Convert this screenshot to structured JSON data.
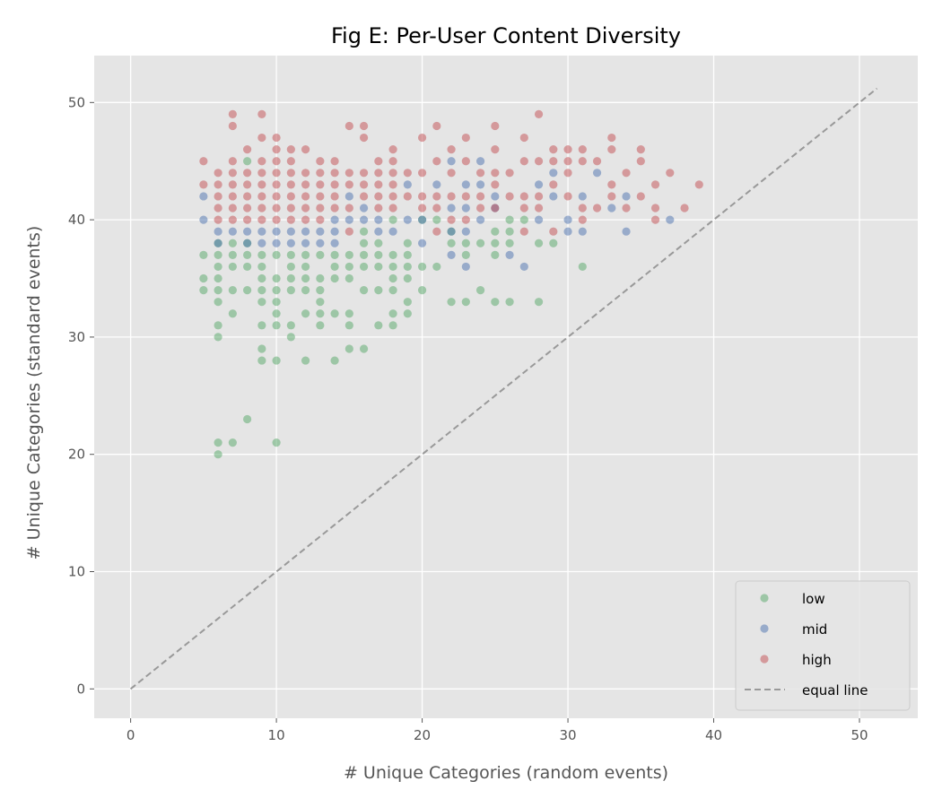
{
  "chart_data": {
    "type": "scatter",
    "title": "Fig E: Per-User Content Diversity",
    "xlabel": "# Unique Categories (random events)",
    "ylabel": "# Unique Categories (standard events)",
    "xlim": [
      -2.5,
      54
    ],
    "ylim": [
      -2.5,
      54
    ],
    "xticks": [
      0,
      10,
      20,
      30,
      40,
      50
    ],
    "yticks": [
      0,
      10,
      20,
      30,
      40,
      50
    ],
    "grid": true,
    "style": "ggplot",
    "legend_position": "lower-right",
    "series": [
      {
        "name": "low",
        "color": "#55a868",
        "points": [
          [
            5,
            37
          ],
          [
            5,
            35
          ],
          [
            5,
            34
          ],
          [
            6,
            38
          ],
          [
            6,
            37
          ],
          [
            6,
            36
          ],
          [
            6,
            35
          ],
          [
            6,
            34
          ],
          [
            6,
            33
          ],
          [
            6,
            31
          ],
          [
            6,
            30
          ],
          [
            6,
            21
          ],
          [
            6,
            20
          ],
          [
            7,
            38
          ],
          [
            7,
            37
          ],
          [
            7,
            36
          ],
          [
            7,
            34
          ],
          [
            7,
            32
          ],
          [
            7,
            21
          ],
          [
            8,
            38
          ],
          [
            8,
            37
          ],
          [
            8,
            36
          ],
          [
            8,
            34
          ],
          [
            8,
            45
          ],
          [
            8,
            23
          ],
          [
            9,
            37
          ],
          [
            9,
            36
          ],
          [
            9,
            35
          ],
          [
            9,
            34
          ],
          [
            9,
            33
          ],
          [
            9,
            31
          ],
          [
            9,
            29
          ],
          [
            9,
            28
          ],
          [
            10,
            37
          ],
          [
            10,
            35
          ],
          [
            10,
            34
          ],
          [
            10,
            33
          ],
          [
            10,
            32
          ],
          [
            10,
            31
          ],
          [
            10,
            28
          ],
          [
            10,
            21
          ],
          [
            11,
            37
          ],
          [
            11,
            36
          ],
          [
            11,
            35
          ],
          [
            11,
            34
          ],
          [
            11,
            31
          ],
          [
            11,
            30
          ],
          [
            12,
            37
          ],
          [
            12,
            36
          ],
          [
            12,
            35
          ],
          [
            12,
            34
          ],
          [
            12,
            32
          ],
          [
            12,
            28
          ],
          [
            13,
            37
          ],
          [
            13,
            35
          ],
          [
            13,
            34
          ],
          [
            13,
            33
          ],
          [
            13,
            32
          ],
          [
            13,
            31
          ],
          [
            14,
            37
          ],
          [
            14,
            36
          ],
          [
            14,
            35
          ],
          [
            14,
            32
          ],
          [
            14,
            28
          ],
          [
            15,
            37
          ],
          [
            15,
            36
          ],
          [
            15,
            35
          ],
          [
            15,
            32
          ],
          [
            15,
            31
          ],
          [
            15,
            29
          ],
          [
            16,
            38
          ],
          [
            16,
            37
          ],
          [
            16,
            36
          ],
          [
            16,
            34
          ],
          [
            16,
            29
          ],
          [
            17,
            38
          ],
          [
            17,
            37
          ],
          [
            17,
            36
          ],
          [
            17,
            34
          ],
          [
            17,
            31
          ],
          [
            18,
            37
          ],
          [
            18,
            36
          ],
          [
            18,
            35
          ],
          [
            18,
            34
          ],
          [
            18,
            32
          ],
          [
            18,
            31
          ],
          [
            19,
            38
          ],
          [
            19,
            37
          ],
          [
            19,
            36
          ],
          [
            19,
            35
          ],
          [
            19,
            33
          ],
          [
            19,
            32
          ],
          [
            20,
            36
          ],
          [
            20,
            34
          ],
          [
            21,
            36
          ],
          [
            22,
            38
          ],
          [
            22,
            33
          ],
          [
            23,
            38
          ],
          [
            23,
            37
          ],
          [
            23,
            33
          ],
          [
            24,
            38
          ],
          [
            24,
            34
          ],
          [
            25,
            38
          ],
          [
            25,
            37
          ],
          [
            25,
            33
          ],
          [
            26,
            39
          ],
          [
            26,
            38
          ],
          [
            26,
            33
          ],
          [
            27,
            40
          ],
          [
            28,
            38
          ],
          [
            28,
            33
          ],
          [
            29,
            38
          ],
          [
            31,
            36
          ],
          [
            16,
            39
          ],
          [
            18,
            40
          ],
          [
            20,
            40
          ],
          [
            21,
            40
          ],
          [
            22,
            39
          ],
          [
            25,
            39
          ],
          [
            26,
            40
          ]
        ]
      },
      {
        "name": "mid",
        "color": "#4c72b0",
        "points": [
          [
            5,
            42
          ],
          [
            5,
            40
          ],
          [
            6,
            39
          ],
          [
            6,
            38
          ],
          [
            7,
            39
          ],
          [
            8,
            38
          ],
          [
            8,
            39
          ],
          [
            9,
            38
          ],
          [
            9,
            39
          ],
          [
            10,
            38
          ],
          [
            10,
            39
          ],
          [
            11,
            38
          ],
          [
            11,
            39
          ],
          [
            12,
            38
          ],
          [
            12,
            39
          ],
          [
            13,
            38
          ],
          [
            13,
            39
          ],
          [
            14,
            38
          ],
          [
            14,
            39
          ],
          [
            14,
            40
          ],
          [
            15,
            42
          ],
          [
            15,
            40
          ],
          [
            16,
            40
          ],
          [
            16,
            41
          ],
          [
            17,
            40
          ],
          [
            17,
            39
          ],
          [
            18,
            39
          ],
          [
            19,
            40
          ],
          [
            19,
            43
          ],
          [
            20,
            38
          ],
          [
            20,
            40
          ],
          [
            21,
            43
          ],
          [
            22,
            45
          ],
          [
            22,
            41
          ],
          [
            22,
            39
          ],
          [
            22,
            37
          ],
          [
            23,
            43
          ],
          [
            23,
            41
          ],
          [
            23,
            39
          ],
          [
            23,
            36
          ],
          [
            24,
            45
          ],
          [
            24,
            43
          ],
          [
            24,
            40
          ],
          [
            25,
            42
          ],
          [
            25,
            41
          ],
          [
            26,
            37
          ],
          [
            27,
            36
          ],
          [
            28,
            43
          ],
          [
            28,
            40
          ],
          [
            29,
            44
          ],
          [
            29,
            42
          ],
          [
            30,
            40
          ],
          [
            30,
            39
          ],
          [
            31,
            42
          ],
          [
            31,
            39
          ],
          [
            32,
            44
          ],
          [
            33,
            41
          ],
          [
            34,
            42
          ],
          [
            34,
            39
          ],
          [
            37,
            40
          ]
        ]
      },
      {
        "name": "high",
        "color": "#c44e52",
        "points": [
          [
            5,
            45
          ],
          [
            5,
            43
          ],
          [
            6,
            44
          ],
          [
            6,
            43
          ],
          [
            6,
            42
          ],
          [
            6,
            41
          ],
          [
            6,
            40
          ],
          [
            7,
            49
          ],
          [
            7,
            48
          ],
          [
            7,
            45
          ],
          [
            7,
            44
          ],
          [
            7,
            43
          ],
          [
            7,
            42
          ],
          [
            7,
            41
          ],
          [
            7,
            40
          ],
          [
            8,
            46
          ],
          [
            8,
            44
          ],
          [
            8,
            43
          ],
          [
            8,
            42
          ],
          [
            8,
            41
          ],
          [
            8,
            40
          ],
          [
            9,
            49
          ],
          [
            9,
            47
          ],
          [
            9,
            45
          ],
          [
            9,
            44
          ],
          [
            9,
            43
          ],
          [
            9,
            42
          ],
          [
            9,
            41
          ],
          [
            9,
            40
          ],
          [
            10,
            47
          ],
          [
            10,
            46
          ],
          [
            10,
            45
          ],
          [
            10,
            44
          ],
          [
            10,
            43
          ],
          [
            10,
            42
          ],
          [
            10,
            41
          ],
          [
            10,
            40
          ],
          [
            11,
            46
          ],
          [
            11,
            45
          ],
          [
            11,
            44
          ],
          [
            11,
            43
          ],
          [
            11,
            42
          ],
          [
            11,
            41
          ],
          [
            11,
            40
          ],
          [
            12,
            46
          ],
          [
            12,
            44
          ],
          [
            12,
            43
          ],
          [
            12,
            42
          ],
          [
            12,
            41
          ],
          [
            12,
            40
          ],
          [
            13,
            45
          ],
          [
            13,
            44
          ],
          [
            13,
            43
          ],
          [
            13,
            42
          ],
          [
            13,
            41
          ],
          [
            13,
            40
          ],
          [
            14,
            45
          ],
          [
            14,
            44
          ],
          [
            14,
            43
          ],
          [
            14,
            42
          ],
          [
            14,
            41
          ],
          [
            15,
            48
          ],
          [
            15,
            44
          ],
          [
            15,
            43
          ],
          [
            15,
            41
          ],
          [
            15,
            39
          ],
          [
            16,
            48
          ],
          [
            16,
            47
          ],
          [
            16,
            44
          ],
          [
            16,
            43
          ],
          [
            16,
            42
          ],
          [
            17,
            45
          ],
          [
            17,
            44
          ],
          [
            17,
            43
          ],
          [
            17,
            42
          ],
          [
            17,
            41
          ],
          [
            18,
            46
          ],
          [
            18,
            45
          ],
          [
            18,
            44
          ],
          [
            18,
            43
          ],
          [
            18,
            42
          ],
          [
            18,
            41
          ],
          [
            19,
            44
          ],
          [
            19,
            42
          ],
          [
            20,
            47
          ],
          [
            20,
            44
          ],
          [
            20,
            42
          ],
          [
            20,
            41
          ],
          [
            21,
            48
          ],
          [
            21,
            45
          ],
          [
            21,
            42
          ],
          [
            21,
            41
          ],
          [
            21,
            39
          ],
          [
            22,
            46
          ],
          [
            22,
            44
          ],
          [
            22,
            42
          ],
          [
            22,
            40
          ],
          [
            23,
            47
          ],
          [
            23,
            45
          ],
          [
            23,
            42
          ],
          [
            23,
            40
          ],
          [
            24,
            44
          ],
          [
            24,
            42
          ],
          [
            24,
            41
          ],
          [
            25,
            48
          ],
          [
            25,
            46
          ],
          [
            25,
            44
          ],
          [
            25,
            43
          ],
          [
            25,
            41
          ],
          [
            26,
            44
          ],
          [
            26,
            42
          ],
          [
            27,
            47
          ],
          [
            27,
            45
          ],
          [
            27,
            42
          ],
          [
            27,
            41
          ],
          [
            27,
            39
          ],
          [
            28,
            49
          ],
          [
            28,
            45
          ],
          [
            28,
            42
          ],
          [
            28,
            41
          ],
          [
            29,
            46
          ],
          [
            29,
            45
          ],
          [
            29,
            43
          ],
          [
            29,
            39
          ],
          [
            30,
            46
          ],
          [
            30,
            45
          ],
          [
            30,
            44
          ],
          [
            30,
            42
          ],
          [
            31,
            46
          ],
          [
            31,
            45
          ],
          [
            31,
            41
          ],
          [
            31,
            40
          ],
          [
            32,
            45
          ],
          [
            32,
            41
          ],
          [
            33,
            47
          ],
          [
            33,
            46
          ],
          [
            33,
            43
          ],
          [
            33,
            42
          ],
          [
            34,
            44
          ],
          [
            34,
            41
          ],
          [
            35,
            46
          ],
          [
            35,
            45
          ],
          [
            35,
            42
          ],
          [
            36,
            43
          ],
          [
            36,
            41
          ],
          [
            36,
            40
          ],
          [
            37,
            44
          ],
          [
            38,
            41
          ],
          [
            39,
            43
          ]
        ]
      }
    ],
    "reference_line": {
      "name": "equal line",
      "color": "#999999",
      "from": [
        0,
        0
      ],
      "to": [
        51.2,
        51.2
      ]
    }
  }
}
